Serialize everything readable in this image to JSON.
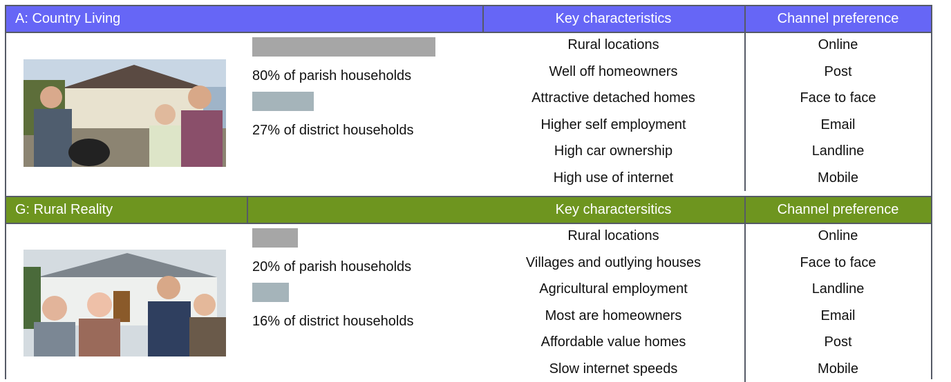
{
  "segments": [
    {
      "title": "A: Country Living",
      "key_header": "Key characteristics",
      "channel_header": "Channel preference",
      "parish": {
        "value": 80,
        "label": "80% of parish households"
      },
      "district": {
        "value": 27,
        "label": "27% of district households"
      },
      "characteristics": [
        "Rural locations",
        "Well off homeowners",
        "Attractive detached homes",
        "Higher self employment",
        "High car ownership",
        "High use of internet"
      ],
      "channels": [
        "Online",
        "Post",
        "Face to face",
        "Email",
        "Landline",
        "Mobile"
      ]
    },
    {
      "title": "G: Rural Reality",
      "key_header": "Key charactersitics",
      "channel_header": "Channel preference",
      "parish": {
        "value": 20,
        "label": "20% of parish households"
      },
      "district": {
        "value": 16,
        "label": "16% of district households"
      },
      "characteristics": [
        "Rural locations",
        "Villages and outlying houses",
        "Agricultural employment",
        "Most are homeowners",
        "Affordable value homes",
        "Slow internet speeds"
      ],
      "channels": [
        "Online",
        "Face to face",
        "Landline",
        "Email",
        "Post",
        "Mobile"
      ]
    }
  ]
}
